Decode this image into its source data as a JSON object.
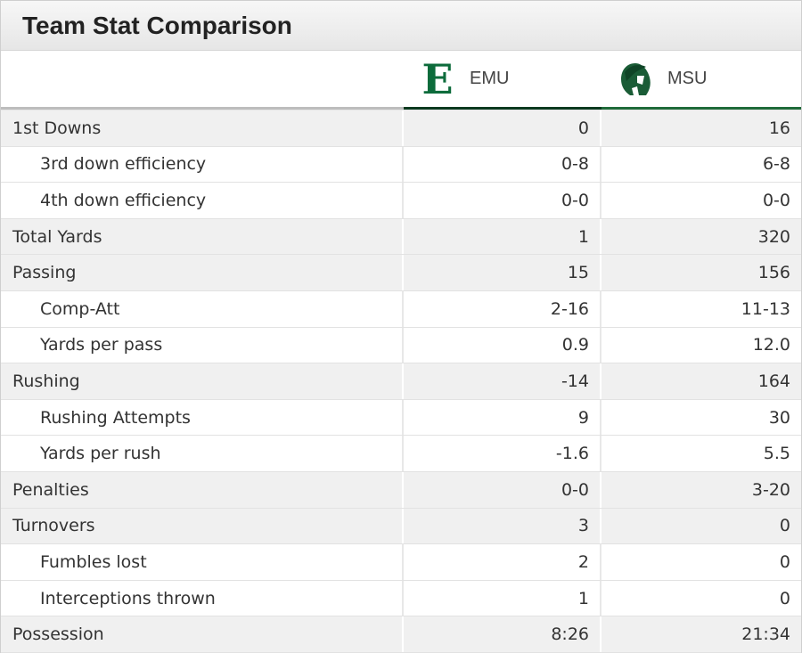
{
  "title": "Team Stat Comparison",
  "teams": {
    "emu": {
      "name": "EMU",
      "logo_icon": "emu-e-logo-icon",
      "color": "#0d6b3b"
    },
    "msu": {
      "name": "MSU",
      "logo_icon": "spartan-helmet-logo-icon",
      "color": "#1f6b3a"
    }
  },
  "rows": [
    {
      "label": "1st Downs",
      "level": "main",
      "emu": "0",
      "msu": "16"
    },
    {
      "label": "3rd down efficiency",
      "level": "sub",
      "emu": "0-8",
      "msu": "6-8"
    },
    {
      "label": "4th down efficiency",
      "level": "sub",
      "emu": "0-0",
      "msu": "0-0"
    },
    {
      "label": "Total Yards",
      "level": "main",
      "emu": "1",
      "msu": "320"
    },
    {
      "label": "Passing",
      "level": "main",
      "emu": "15",
      "msu": "156"
    },
    {
      "label": "Comp-Att",
      "level": "sub",
      "emu": "2-16",
      "msu": "11-13"
    },
    {
      "label": "Yards per pass",
      "level": "sub",
      "emu": "0.9",
      "msu": "12.0"
    },
    {
      "label": "Rushing",
      "level": "main",
      "emu": "-14",
      "msu": "164"
    },
    {
      "label": "Rushing Attempts",
      "level": "sub",
      "emu": "9",
      "msu": "30"
    },
    {
      "label": "Yards per rush",
      "level": "sub",
      "emu": "-1.6",
      "msu": "5.5"
    },
    {
      "label": "Penalties",
      "level": "main",
      "emu": "0-0",
      "msu": "3-20"
    },
    {
      "label": "Turnovers",
      "level": "main",
      "emu": "3",
      "msu": "0"
    },
    {
      "label": "Fumbles lost",
      "level": "sub",
      "emu": "2",
      "msu": "0"
    },
    {
      "label": "Interceptions thrown",
      "level": "sub",
      "emu": "1",
      "msu": "0"
    },
    {
      "label": "Possession",
      "level": "main",
      "emu": "8:26",
      "msu": "21:34"
    }
  ]
}
